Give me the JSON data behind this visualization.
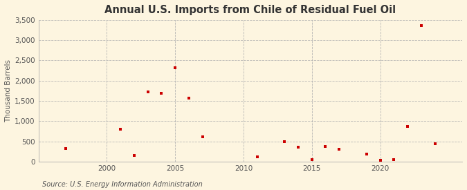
{
  "title": "Annual U.S. Imports from Chile of Residual Fuel Oil",
  "ylabel": "Thousand Barrels",
  "source": "Source: U.S. Energy Information Administration",
  "background_color": "#fdf5e0",
  "plot_bg_color": "#fdf5e0",
  "marker_color": "#cc0000",
  "grid_color": "#b0b0b0",
  "years": [
    1997,
    2001,
    2002,
    2003,
    2004,
    2005,
    2006,
    2007,
    2011,
    2013,
    2014,
    2015,
    2016,
    2017,
    2019,
    2020,
    2021,
    2022,
    2023,
    2024
  ],
  "values": [
    330,
    800,
    150,
    1720,
    1680,
    2310,
    1560,
    620,
    110,
    490,
    360,
    55,
    380,
    300,
    185,
    30,
    45,
    870,
    3350,
    440
  ],
  "xlim": [
    1995,
    2026
  ],
  "ylim": [
    0,
    3500
  ],
  "xticks": [
    2000,
    2005,
    2010,
    2015,
    2020
  ],
  "yticks": [
    0,
    500,
    1000,
    1500,
    2000,
    2500,
    3000,
    3500
  ],
  "ytick_labels": [
    "0",
    "500",
    "1,000",
    "1,500",
    "2,000",
    "2,500",
    "3,000",
    "3,500"
  ],
  "title_fontsize": 10.5,
  "label_fontsize": 7.5,
  "source_fontsize": 7
}
